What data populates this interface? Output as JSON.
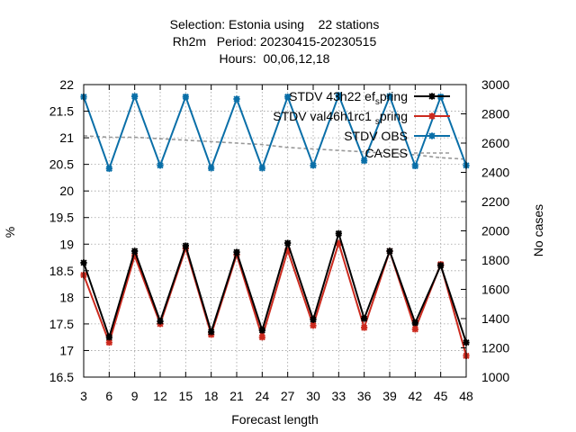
{
  "chart_data": {
    "type": "line",
    "title_lines": [
      "Selection: Estonia using    22 stations",
      "Rh2m   Period: 20230415-20230515",
      "Hours:  00,06,12,18"
    ],
    "xlabel": "Forecast length",
    "ylabel": "%",
    "y2label": "No cases",
    "x": [
      3,
      6,
      9,
      12,
      15,
      18,
      21,
      24,
      27,
      30,
      33,
      36,
      39,
      42,
      45,
      48
    ],
    "xlim": [
      3,
      48
    ],
    "ylim": [
      16.5,
      22
    ],
    "y2lim": [
      1000,
      3000
    ],
    "y_ticks": [
      "16.5",
      "17",
      "17.5",
      "18",
      "18.5",
      "19",
      "19.5",
      "20",
      "20.5",
      "21",
      "21.5",
      "22"
    ],
    "y2_ticks": [
      "1000",
      "1200",
      "1400",
      "1600",
      "1800",
      "2000",
      "2200",
      "2400",
      "2600",
      "2800",
      "3000"
    ],
    "x_ticks": [
      "3",
      "6",
      "9",
      "12",
      "15",
      "18",
      "21",
      "24",
      "27",
      "30",
      "33",
      "36",
      "39",
      "42",
      "45",
      "48"
    ],
    "grid": true,
    "legend_position": "top-right",
    "series": [
      {
        "name": "STDV 43h22",
        "name_tail": "ef",
        "name_sub": "s",
        "name_end": "pring",
        "axis": "y",
        "color": "#000000",
        "marker": "star",
        "values": [
          18.65,
          17.25,
          18.87,
          17.55,
          18.97,
          17.35,
          18.85,
          17.38,
          19.02,
          17.58,
          19.2,
          17.6,
          18.87,
          17.52,
          18.6,
          17.15
        ]
      },
      {
        "name": "STDV val46h1rc1",
        "name_tail": "",
        "name_sub": "s",
        "name_end": "pring",
        "axis": "y",
        "color": "#cc2a1e",
        "marker": "star",
        "values": [
          18.42,
          17.15,
          18.78,
          17.5,
          18.92,
          17.3,
          18.8,
          17.25,
          18.88,
          17.47,
          19.02,
          17.43,
          18.87,
          17.4,
          18.62,
          16.9
        ]
      },
      {
        "name": "STDV OBS",
        "axis": "y",
        "color": "#0a6fa8",
        "marker": "star",
        "values": [
          21.77,
          20.42,
          21.78,
          20.48,
          21.77,
          20.43,
          21.73,
          20.43,
          21.77,
          20.48,
          21.8,
          20.57,
          21.78,
          20.47,
          21.77,
          20.48
        ]
      },
      {
        "name": "CASES",
        "axis": "y2",
        "color": "#999999",
        "dashed": true,
        "values": [
          2650,
          2640,
          2640,
          2630,
          2620,
          2610,
          2600,
          2590,
          2570,
          2560,
          2550,
          2540,
          2530,
          2520,
          2500,
          2490
        ]
      }
    ]
  }
}
